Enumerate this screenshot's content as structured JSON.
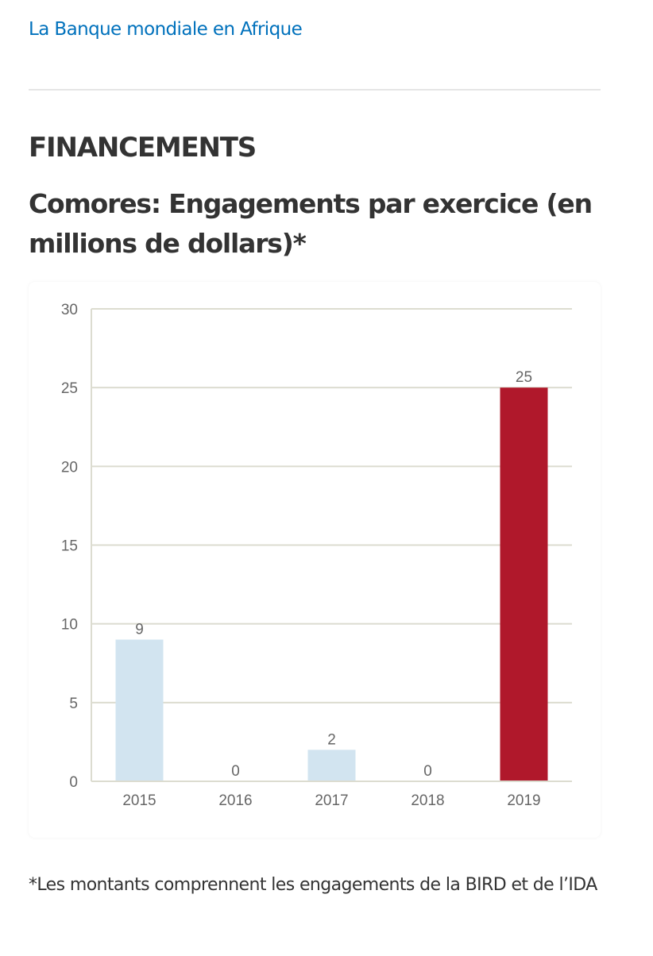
{
  "header": {
    "link_label": "La Banque mondiale en Afrique"
  },
  "section": {
    "title": "FINANCEMENTS"
  },
  "chart_data": {
    "type": "bar",
    "title": "Comores: Engagements par exercice (en millions de dollars)*",
    "xlabel": "",
    "ylabel": "",
    "categories": [
      "2015",
      "2016",
      "2017",
      "2018",
      "2019"
    ],
    "values": [
      9,
      0,
      2,
      0,
      25
    ],
    "data_labels": [
      "9",
      "0",
      "2",
      "0",
      "25"
    ],
    "ylim": [
      0,
      30
    ],
    "yticks": [
      0,
      5,
      10,
      15,
      20,
      25,
      30
    ],
    "ytick_labels": [
      "0",
      "5",
      "10",
      "15",
      "20",
      "25",
      "30"
    ],
    "grid": true,
    "legend": "none",
    "colors": {
      "default_bar": "#d2e4f0",
      "highlight_bar": "#b0182b",
      "gridline": "#dcdcd0",
      "label_text": "#666666"
    },
    "highlight_index": 4
  },
  "footnote": "*Les montants comprennent les engagements de la BIRD et de l’IDA"
}
